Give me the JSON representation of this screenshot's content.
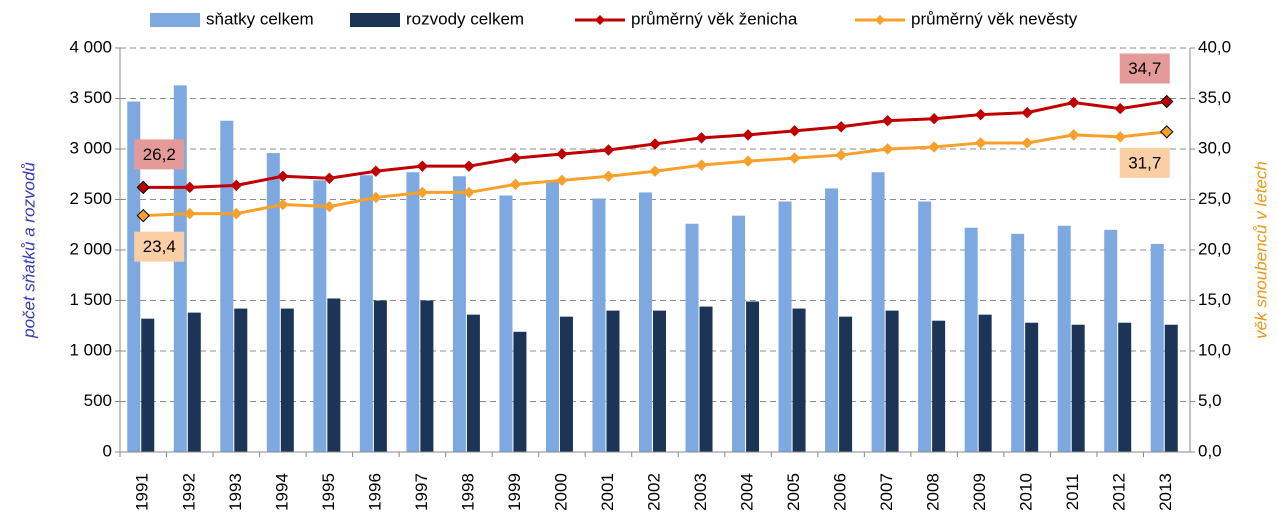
{
  "chart_data": {
    "type": "bar",
    "categories": [
      "1991",
      "1992",
      "1993",
      "1994",
      "1995",
      "1996",
      "1997",
      "1998",
      "1999",
      "2000",
      "2001",
      "2002",
      "2003",
      "2004",
      "2005",
      "2006",
      "2007",
      "2008",
      "2009",
      "2010",
      "2011",
      "2012",
      "2013"
    ],
    "series": [
      {
        "name": "sňatky celkem",
        "color": "#7da9e0",
        "type": "bar",
        "values": [
          3470,
          3630,
          3280,
          2960,
          2690,
          2740,
          2770,
          2730,
          2540,
          2690,
          2510,
          2570,
          2260,
          2340,
          2480,
          2610,
          2770,
          2480,
          2220,
          2160,
          2240,
          2200,
          2060
        ]
      },
      {
        "name": "rozvody celkem",
        "color": "#1c3557",
        "type": "bar",
        "values": [
          1320,
          1380,
          1420,
          1420,
          1520,
          1500,
          1500,
          1360,
          1190,
          1340,
          1400,
          1400,
          1440,
          1490,
          1420,
          1340,
          1400,
          1300,
          1360,
          1280,
          1260,
          1280,
          1260
        ]
      },
      {
        "name": "průměrný věk ženicha",
        "color": "#c00000",
        "type": "line",
        "axis": "y2",
        "label_bg": "#e59a9a",
        "values": [
          26.2,
          26.2,
          26.4,
          27.3,
          27.1,
          27.8,
          28.3,
          28.3,
          29.1,
          29.5,
          29.9,
          30.5,
          31.1,
          31.4,
          31.8,
          32.2,
          32.8,
          33.0,
          33.4,
          33.6,
          34.6,
          34.0,
          34.7
        ],
        "value_labels": [
          "26,2",
          null,
          null,
          null,
          null,
          null,
          null,
          null,
          null,
          null,
          null,
          null,
          null,
          null,
          null,
          null,
          null,
          null,
          null,
          null,
          null,
          null,
          "34,7"
        ]
      },
      {
        "name": "průměrný věk nevěsty",
        "color": "#f7a12a",
        "type": "line",
        "axis": "y2",
        "label_bg": "#fbcfa6",
        "values": [
          23.4,
          23.6,
          23.6,
          24.5,
          24.3,
          25.2,
          25.7,
          25.7,
          26.5,
          26.9,
          27.3,
          27.8,
          28.4,
          28.8,
          29.1,
          29.4,
          30.0,
          30.2,
          30.6,
          30.6,
          31.4,
          31.2,
          31.7
        ],
        "value_labels": [
          "23,4",
          null,
          null,
          null,
          null,
          null,
          null,
          null,
          null,
          null,
          null,
          null,
          null,
          null,
          null,
          null,
          null,
          null,
          null,
          null,
          null,
          null,
          "31,7"
        ]
      }
    ],
    "ylabel": "počet sňatků a rozvodů",
    "y2label": "věk snoubenců v letech",
    "ylim": [
      0,
      4000
    ],
    "yticks": [
      0,
      500,
      {
        "value": 1000,
        "label": "1 000"
      },
      {
        "value": 1500,
        "label": "1 500"
      },
      {
        "value": 2000,
        "label": "2 000"
      },
      {
        "value": 2500,
        "label": "2 500"
      },
      {
        "value": 3000,
        "label": "3 000"
      },
      {
        "value": 3500,
        "label": "3 500"
      },
      {
        "value": 4000,
        "label": "4 000"
      }
    ],
    "y2lim": [
      0,
      40
    ],
    "y2ticks": [
      {
        "value": 0,
        "label": "0,0"
      },
      {
        "value": 5,
        "label": "5,0"
      },
      {
        "value": 10,
        "label": "10,0"
      },
      {
        "value": 15,
        "label": "15,0"
      },
      {
        "value": 20,
        "label": "20,0"
      },
      {
        "value": 25,
        "label": "25,0"
      },
      {
        "value": 30,
        "label": "30,0"
      },
      {
        "value": 35,
        "label": "35,0"
      },
      {
        "value": 40,
        "label": "40,0"
      }
    ],
    "grid": true,
    "legend": "top"
  }
}
